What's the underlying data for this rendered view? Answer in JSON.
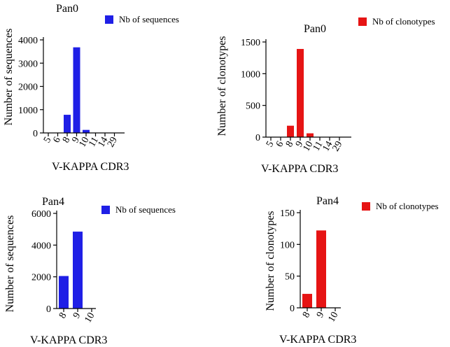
{
  "chart_data": [
    {
      "type": "bar",
      "title": "Pan0",
      "xlabel": "V-KAPPA CDR3",
      "ylabel": "Number of sequences",
      "legend": "Nb of sequences",
      "color": "#1f1fe6",
      "categories": [
        "5",
        "6",
        "8",
        "9",
        "10",
        "11",
        "14",
        "29"
      ],
      "values": [
        0,
        0,
        780,
        3680,
        130,
        10,
        5,
        0
      ],
      "ylim": [
        0,
        4000
      ],
      "yticks": [
        0,
        1000,
        2000,
        3000,
        4000
      ]
    },
    {
      "type": "bar",
      "title": "Pan0",
      "xlabel": "V-KAPPA CDR3",
      "ylabel": "Number of clonotypes",
      "legend": "Nb of clonotypes",
      "color": "#e61414",
      "categories": [
        "5",
        "6",
        "8",
        "9",
        "10",
        "11",
        "14",
        "29"
      ],
      "values": [
        0,
        0,
        180,
        1390,
        60,
        5,
        3,
        0
      ],
      "ylim": [
        0,
        1500
      ],
      "yticks": [
        0,
        500,
        1000,
        1500
      ]
    },
    {
      "type": "bar",
      "title": "Pan4",
      "xlabel": "V-KAPPA CDR3",
      "ylabel": "Number of sequences",
      "legend": "Nb of sequences",
      "color": "#1f1fe6",
      "categories": [
        "8",
        "9",
        "10"
      ],
      "values": [
        2050,
        4850,
        0
      ],
      "ylim": [
        0,
        6000
      ],
      "yticks": [
        0,
        2000,
        4000,
        6000
      ]
    },
    {
      "type": "bar",
      "title": "Pan4",
      "xlabel": "V-KAPPA CDR3",
      "ylabel": "Number of clonotypes",
      "legend": "Nb of clonotypes",
      "color": "#e61414",
      "categories": [
        "8",
        "9",
        "10"
      ],
      "values": [
        22,
        122,
        0
      ],
      "ylim": [
        0,
        150
      ],
      "yticks": [
        0,
        50,
        100,
        150
      ]
    }
  ]
}
